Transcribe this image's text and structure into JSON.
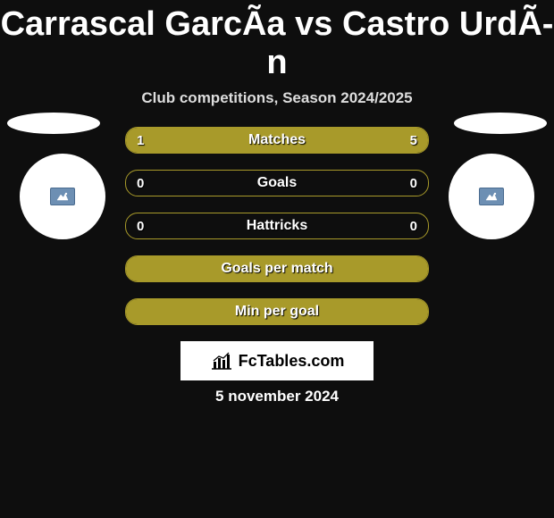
{
  "title": "Carrascal GarcÃ­a vs Castro UrdÃ­n",
  "subtitle": "Club competitions, Season 2024/2025",
  "date": "5 november 2024",
  "site": "FcTables.com",
  "colors": {
    "accent": "#a89a2a",
    "bg": "#0e0e0e",
    "text": "#ffffff",
    "chip": "#6d8fb3"
  },
  "bars": [
    {
      "label": "Matches",
      "left": "1",
      "right": "5",
      "left_pct": 17,
      "right_pct": 83
    },
    {
      "label": "Goals",
      "left": "0",
      "right": "0",
      "left_pct": 0,
      "right_pct": 0
    },
    {
      "label": "Hattricks",
      "left": "0",
      "right": "0",
      "left_pct": 0,
      "right_pct": 0
    },
    {
      "label": "Goals per match",
      "left": "",
      "right": "",
      "left_pct": 100,
      "right_pct": 0
    },
    {
      "label": "Min per goal",
      "left": "",
      "right": "",
      "left_pct": 100,
      "right_pct": 0
    }
  ]
}
